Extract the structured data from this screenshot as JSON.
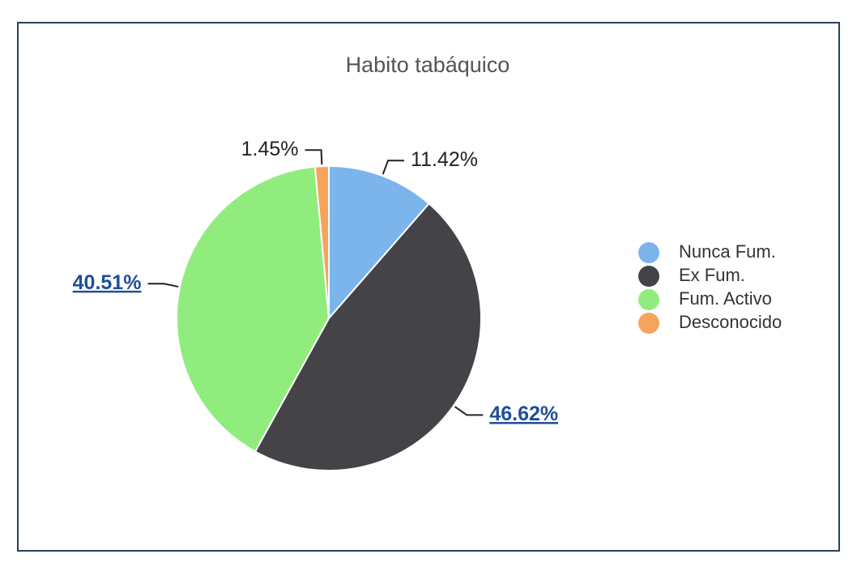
{
  "chart_data": {
    "type": "pie",
    "title": "Habito tabáquico",
    "categories": [
      "Nunca Fum.",
      "Ex Fum.",
      "Fum. Activo",
      "Desconocido"
    ],
    "values": [
      11.42,
      46.62,
      40.51,
      1.45
    ],
    "value_labels": [
      "11.42%",
      "46.62%",
      "40.51%",
      "1.45%"
    ],
    "colors": [
      "#7cb5ec",
      "#434348",
      "#90ed7d",
      "#f7a35c"
    ],
    "legend": "right"
  }
}
